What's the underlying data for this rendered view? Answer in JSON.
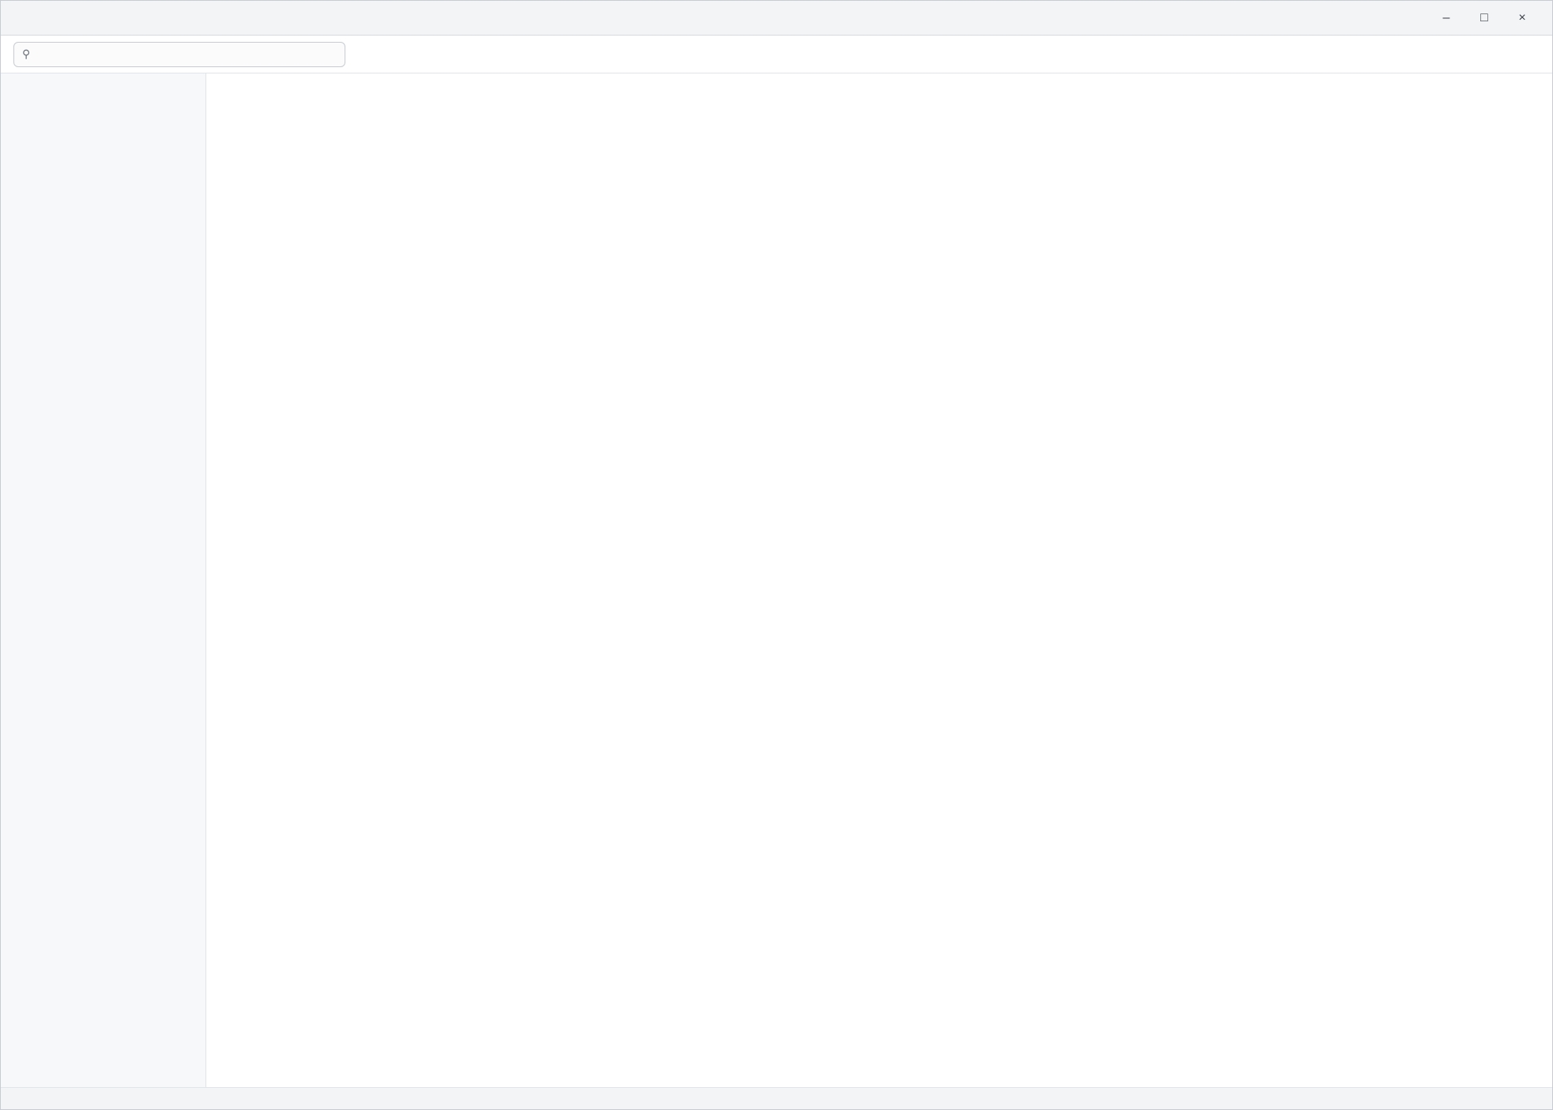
{
  "window": {
    "title": ""
  },
  "search": {
    "value": "",
    "placeholder": ""
  },
  "main": {
    "page_title": "",
    "body_text": ""
  },
  "statusbar": {
    "text": ""
  },
  "icons": {
    "search": "search-icon",
    "minimize": "minimize-icon",
    "maximize": "maximize-icon",
    "close": "close-icon"
  }
}
